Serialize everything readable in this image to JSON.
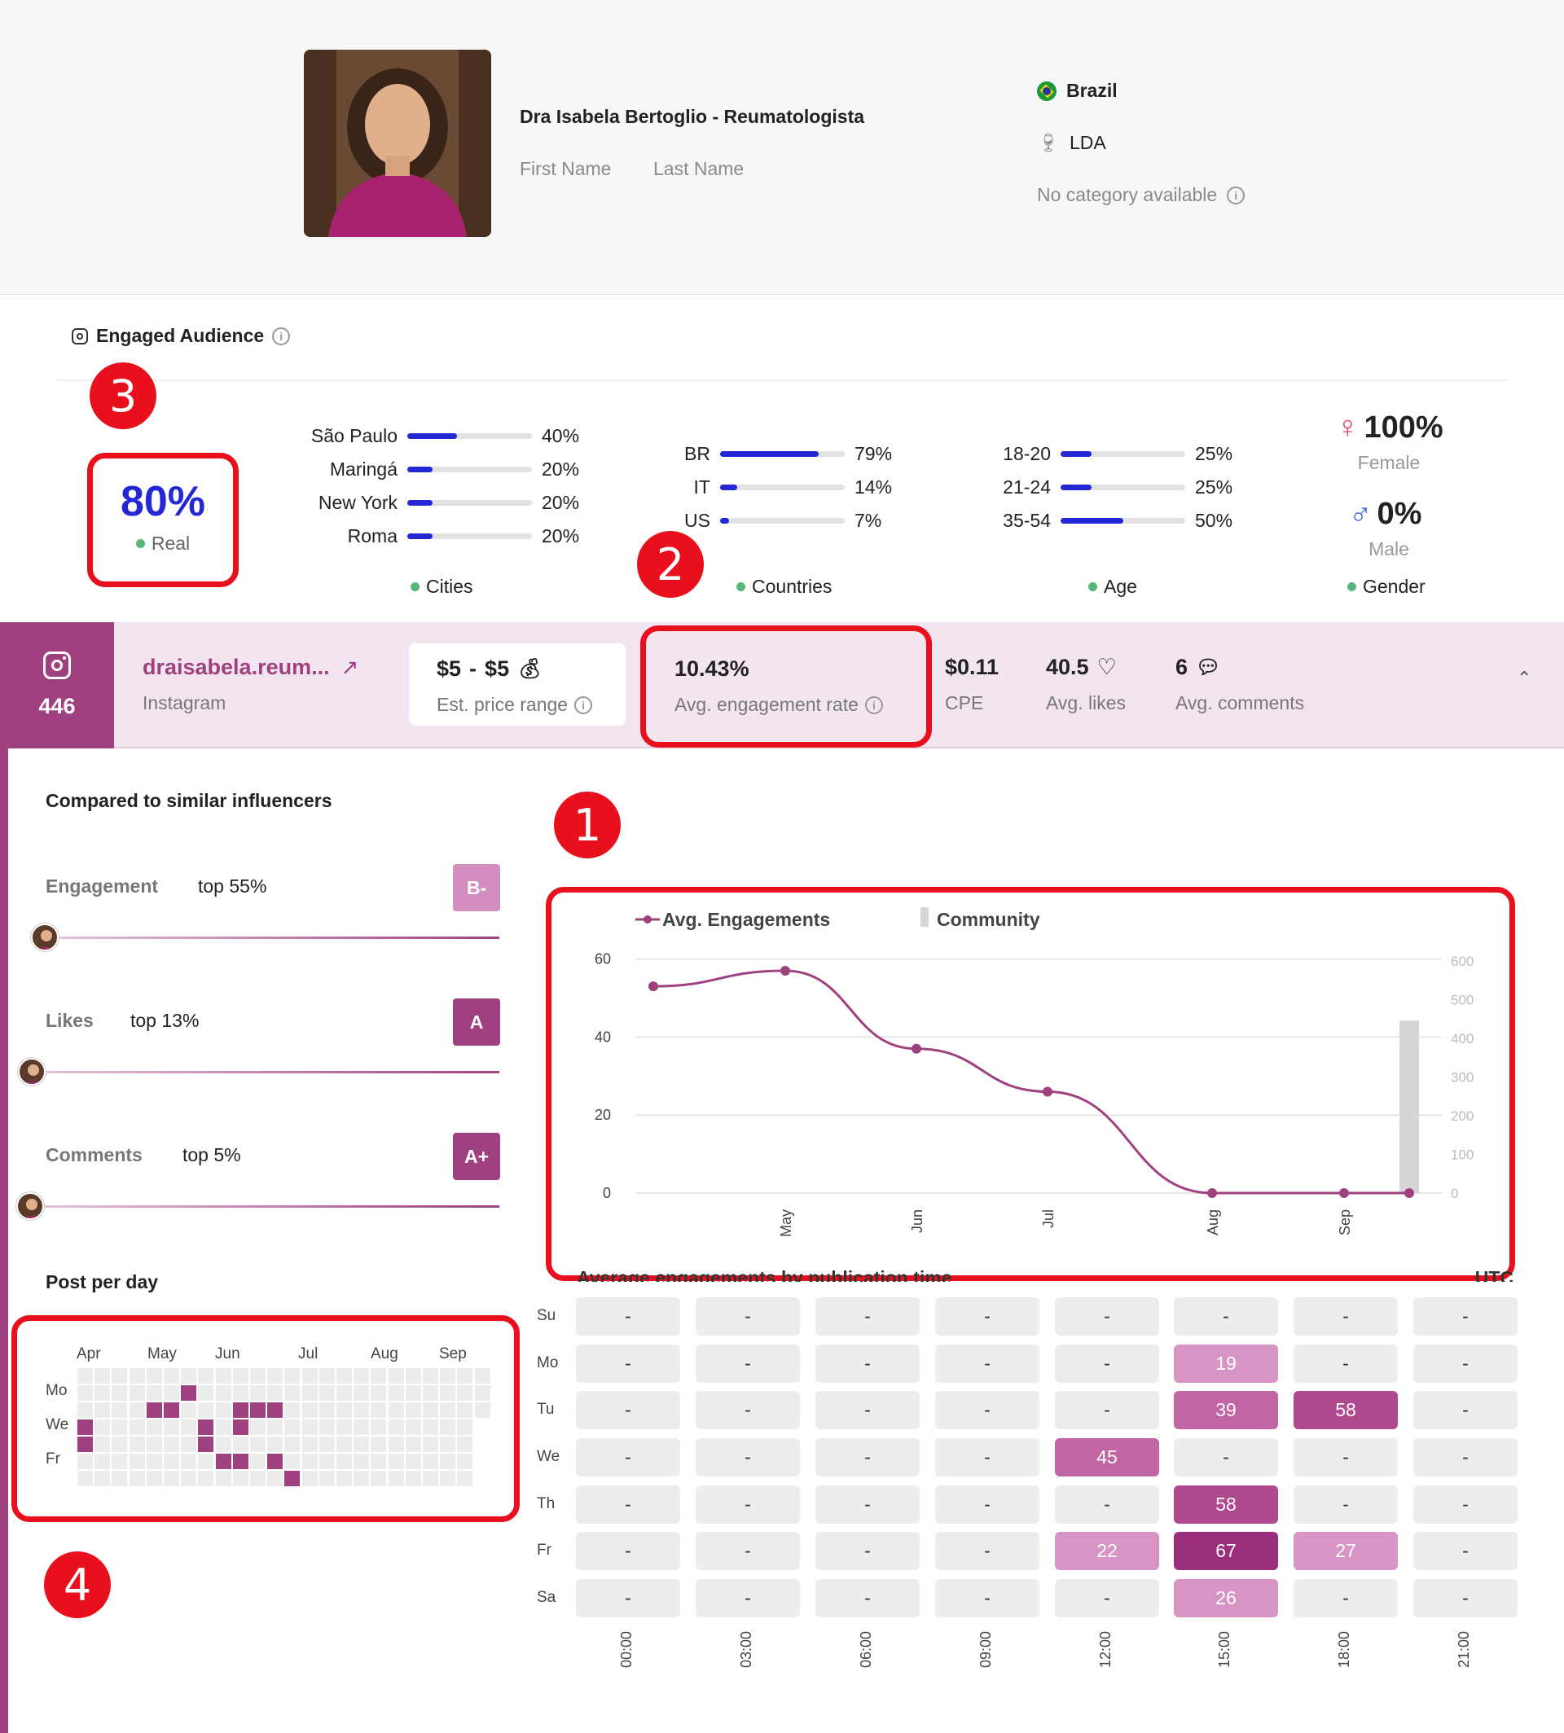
{
  "profile": {
    "full_name": "Dra Isabela Bertoglio - Reumatologista",
    "first_name": "First Name",
    "last_name": "Last Name",
    "country": "Brazil",
    "lda": "LDA",
    "category": "No category available"
  },
  "audience": {
    "title": "Engaged Audience",
    "real_pct": "80%",
    "real_label": "Real",
    "cities": {
      "label": "Cities",
      "items": [
        {
          "name": "São Paulo",
          "pct": "40%",
          "value": 40
        },
        {
          "name": "Maringá",
          "pct": "20%",
          "value": 20
        },
        {
          "name": "New York",
          "pct": "20%",
          "value": 20
        },
        {
          "name": "Roma",
          "pct": "20%",
          "value": 20
        }
      ]
    },
    "countries": {
      "label": "Countries",
      "items": [
        {
          "name": "BR",
          "pct": "79%",
          "value": 79
        },
        {
          "name": "IT",
          "pct": "14%",
          "value": 14
        },
        {
          "name": "US",
          "pct": "7%",
          "value": 7
        }
      ]
    },
    "age": {
      "label": "Age",
      "items": [
        {
          "name": "18-20",
          "pct": "25%",
          "value": 25
        },
        {
          "name": "21-24",
          "pct": "25%",
          "value": 25
        },
        {
          "name": "35-54",
          "pct": "50%",
          "value": 50
        }
      ]
    },
    "gender": {
      "label": "Gender",
      "female_pct": "100%",
      "female_label": "Female",
      "male_pct": "0%",
      "male_label": "Male"
    }
  },
  "annotations": {
    "n1": "1",
    "n2": "2",
    "n3": "3",
    "n4": "4"
  },
  "platform": {
    "posts": "446",
    "handle": "draisabela.reum...",
    "network": "Instagram",
    "price_low": "$5",
    "price_sep": "-",
    "price_high": "$5",
    "price_label": "Est. price range",
    "engagement_rate": "10.43%",
    "engagement_label": "Avg. engagement rate",
    "cpe": "$0.11",
    "cpe_label": "CPE",
    "avg_likes": "40.5",
    "avg_likes_label": "Avg. likes",
    "avg_comments": "6",
    "avg_comments_label": "Avg. comments"
  },
  "compare": {
    "title": "Compared to similar influencers",
    "rows": [
      {
        "label": "Engagement",
        "top": "top 55%",
        "grade": "B-",
        "color": "#d48fc0",
        "position": 0.0
      },
      {
        "label": "Likes",
        "top": "top 13%",
        "grade": "A",
        "color": "#a0417f",
        "position": 0.0
      },
      {
        "label": "Comments",
        "top": "top 5%",
        "grade": "A+",
        "color": "#a0417f",
        "position": 0.0
      }
    ]
  },
  "post_per_day": {
    "title": "Post per day",
    "months": [
      "Apr",
      "May",
      "Jun",
      "Jul",
      "Aug",
      "Sep"
    ],
    "days": [
      "Mo",
      "We",
      "Fr"
    ]
  },
  "chart_data": {
    "type": "line",
    "legend": [
      "Avg. Engagements",
      "Community"
    ],
    "x": [
      "",
      "May",
      "Jun",
      "Jul",
      "Aug",
      "Sep",
      ""
    ],
    "series": [
      {
        "name": "Avg. Engagements",
        "values": [
          53,
          57,
          37,
          26,
          0,
          0,
          0
        ]
      },
      {
        "name": "Community",
        "type": "bar",
        "values": [
          0,
          0,
          0,
          0,
          0,
          0,
          446
        ]
      }
    ],
    "y_left_ticks": [
      "0",
      "20",
      "40",
      "60"
    ],
    "y_right_ticks": [
      "0",
      "100",
      "200",
      "300",
      "400",
      "500",
      "600"
    ],
    "ylim": [
      0,
      76
    ],
    "ylim_right": [
      0,
      600
    ]
  },
  "heatmap": {
    "title": "Average engagements by publication time",
    "tz": "UTC",
    "days": [
      "Su",
      "Mo",
      "Tu",
      "We",
      "Th",
      "Fr",
      "Sa"
    ],
    "times": [
      "00:00",
      "03:00",
      "06:00",
      "09:00",
      "12:00",
      "15:00",
      "18:00",
      "21:00"
    ],
    "values": [
      [
        "-",
        "-",
        "-",
        "-",
        "-",
        "-",
        "-",
        "-"
      ],
      [
        "-",
        "-",
        "-",
        "-",
        "-",
        "19",
        "-",
        "-"
      ],
      [
        "-",
        "-",
        "-",
        "-",
        "-",
        "39",
        "58",
        "-"
      ],
      [
        "-",
        "-",
        "-",
        "-",
        "45",
        "-",
        "-",
        "-"
      ],
      [
        "-",
        "-",
        "-",
        "-",
        "-",
        "58",
        "-",
        "-"
      ],
      [
        "-",
        "-",
        "-",
        "-",
        "22",
        "67",
        "27",
        "-"
      ],
      [
        "-",
        "-",
        "-",
        "-",
        "-",
        "26",
        "-",
        "-"
      ]
    ]
  }
}
